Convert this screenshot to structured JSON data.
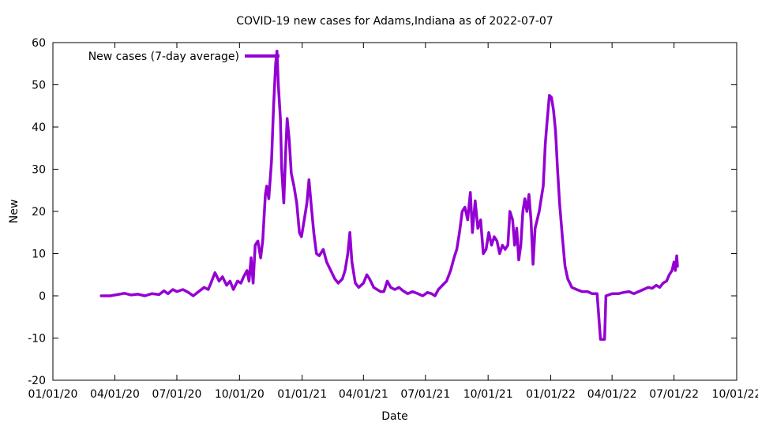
{
  "chart_data": {
    "type": "line",
    "title": "COVID-19 new cases for Adams,Indiana as of 2022-07-07",
    "xlabel": "Date",
    "ylabel": "New",
    "xlim": [
      "2020-01-01",
      "2022-10-01"
    ],
    "ylim": [
      -20,
      60
    ],
    "x_ticks": [
      "01/01/20",
      "04/01/20",
      "07/01/20",
      "10/01/20",
      "01/01/21",
      "04/01/21",
      "07/01/21",
      "10/01/21",
      "01/01/22",
      "04/01/22",
      "07/01/22",
      "10/01/22"
    ],
    "x_tick_dates": [
      "2020-01-01",
      "2020-04-01",
      "2020-07-01",
      "2020-10-01",
      "2021-01-01",
      "2021-04-01",
      "2021-07-01",
      "2021-10-01",
      "2022-01-01",
      "2022-04-01",
      "2022-07-01",
      "2022-10-01"
    ],
    "y_ticks": [
      -20,
      -10,
      0,
      10,
      20,
      30,
      40,
      50,
      60
    ],
    "grid": false,
    "legend_position": "top-left",
    "series": [
      {
        "name": "New cases (7-day average)",
        "color": "#9400d3",
        "points": [
          [
            "2020-03-12",
            0.0
          ],
          [
            "2020-03-25",
            0.0
          ],
          [
            "2020-04-05",
            0.3
          ],
          [
            "2020-04-15",
            0.6
          ],
          [
            "2020-04-25",
            0.2
          ],
          [
            "2020-05-05",
            0.4
          ],
          [
            "2020-05-15",
            0.0
          ],
          [
            "2020-05-25",
            0.5
          ],
          [
            "2020-06-05",
            0.3
          ],
          [
            "2020-06-12",
            1.2
          ],
          [
            "2020-06-18",
            0.5
          ],
          [
            "2020-06-25",
            1.5
          ],
          [
            "2020-07-01",
            1.0
          ],
          [
            "2020-07-10",
            1.5
          ],
          [
            "2020-07-18",
            0.8
          ],
          [
            "2020-07-25",
            0.0
          ],
          [
            "2020-08-02",
            1.0
          ],
          [
            "2020-08-10",
            2.0
          ],
          [
            "2020-08-16",
            1.5
          ],
          [
            "2020-08-20",
            3.0
          ],
          [
            "2020-08-26",
            5.5
          ],
          [
            "2020-09-01",
            3.5
          ],
          [
            "2020-09-06",
            4.5
          ],
          [
            "2020-09-12",
            2.5
          ],
          [
            "2020-09-17",
            3.5
          ],
          [
            "2020-09-22",
            1.5
          ],
          [
            "2020-09-28",
            3.5
          ],
          [
            "2020-10-03",
            3.0
          ],
          [
            "2020-10-07",
            4.5
          ],
          [
            "2020-10-12",
            6.0
          ],
          [
            "2020-10-15",
            3.5
          ],
          [
            "2020-10-18",
            9.0
          ],
          [
            "2020-10-21",
            3.0
          ],
          [
            "2020-10-24",
            12.0
          ],
          [
            "2020-10-28",
            13.0
          ],
          [
            "2020-11-01",
            9.0
          ],
          [
            "2020-11-04",
            13.0
          ],
          [
            "2020-11-08",
            24.0
          ],
          [
            "2020-11-10",
            26.0
          ],
          [
            "2020-11-13",
            23.0
          ],
          [
            "2020-11-17",
            32.0
          ],
          [
            "2020-11-20",
            45.0
          ],
          [
            "2020-11-23",
            55.0
          ],
          [
            "2020-11-25",
            58.0
          ],
          [
            "2020-11-27",
            50.0
          ],
          [
            "2020-11-30",
            42.0
          ],
          [
            "2020-12-02",
            30.0
          ],
          [
            "2020-12-05",
            22.0
          ],
          [
            "2020-12-08",
            35.0
          ],
          [
            "2020-12-10",
            42.0
          ],
          [
            "2020-12-13",
            37.0
          ],
          [
            "2020-12-16",
            29.0
          ],
          [
            "2020-12-20",
            26.0
          ],
          [
            "2020-12-24",
            22.0
          ],
          [
            "2020-12-28",
            15.0
          ],
          [
            "2020-12-31",
            14.0
          ],
          [
            "2021-01-04",
            18.0
          ],
          [
            "2021-01-08",
            22.0
          ],
          [
            "2021-01-11",
            27.5
          ],
          [
            "2021-01-14",
            22.0
          ],
          [
            "2021-01-18",
            15.0
          ],
          [
            "2021-01-22",
            10.0
          ],
          [
            "2021-01-26",
            9.5
          ],
          [
            "2021-02-01",
            11.0
          ],
          [
            "2021-02-06",
            8.0
          ],
          [
            "2021-02-12",
            6.0
          ],
          [
            "2021-02-18",
            4.0
          ],
          [
            "2021-02-23",
            3.0
          ],
          [
            "2021-03-01",
            4.0
          ],
          [
            "2021-03-05",
            6.0
          ],
          [
            "2021-03-09",
            10.0
          ],
          [
            "2021-03-12",
            15.0
          ],
          [
            "2021-03-15",
            8.0
          ],
          [
            "2021-03-20",
            3.0
          ],
          [
            "2021-03-25",
            2.0
          ],
          [
            "2021-04-01",
            3.0
          ],
          [
            "2021-04-06",
            5.0
          ],
          [
            "2021-04-10",
            4.0
          ],
          [
            "2021-04-16",
            2.0
          ],
          [
            "2021-04-21",
            1.5
          ],
          [
            "2021-04-26",
            1.0
          ],
          [
            "2021-05-01",
            1.0
          ],
          [
            "2021-05-06",
            3.5
          ],
          [
            "2021-05-11",
            2.0
          ],
          [
            "2021-05-17",
            1.5
          ],
          [
            "2021-05-23",
            2.0
          ],
          [
            "2021-05-29",
            1.2
          ],
          [
            "2021-06-05",
            0.5
          ],
          [
            "2021-06-12",
            1.0
          ],
          [
            "2021-06-20",
            0.5
          ],
          [
            "2021-06-27",
            0.0
          ],
          [
            "2021-07-04",
            0.8
          ],
          [
            "2021-07-10",
            0.5
          ],
          [
            "2021-07-15",
            0.0
          ],
          [
            "2021-07-20",
            1.5
          ],
          [
            "2021-07-26",
            2.5
          ],
          [
            "2021-08-01",
            3.5
          ],
          [
            "2021-08-07",
            6.0
          ],
          [
            "2021-08-12",
            9.0
          ],
          [
            "2021-08-16",
            11.0
          ],
          [
            "2021-08-20",
            15.0
          ],
          [
            "2021-08-24",
            20.0
          ],
          [
            "2021-08-28",
            21.0
          ],
          [
            "2021-09-01",
            18.0
          ],
          [
            "2021-09-05",
            24.5
          ],
          [
            "2021-09-08",
            15.0
          ],
          [
            "2021-09-12",
            22.5
          ],
          [
            "2021-09-16",
            16.0
          ],
          [
            "2021-09-20",
            18.0
          ],
          [
            "2021-09-24",
            10.0
          ],
          [
            "2021-09-28",
            11.0
          ],
          [
            "2021-10-02",
            15.0
          ],
          [
            "2021-10-06",
            12.0
          ],
          [
            "2021-10-10",
            14.0
          ],
          [
            "2021-10-14",
            13.0
          ],
          [
            "2021-10-18",
            10.0
          ],
          [
            "2021-10-22",
            12.0
          ],
          [
            "2021-10-26",
            11.0
          ],
          [
            "2021-10-30",
            12.0
          ],
          [
            "2021-11-02",
            20.0
          ],
          [
            "2021-11-06",
            18.0
          ],
          [
            "2021-11-09",
            12.0
          ],
          [
            "2021-11-12",
            16.0
          ],
          [
            "2021-11-15",
            8.5
          ],
          [
            "2021-11-18",
            12.0
          ],
          [
            "2021-11-21",
            20.0
          ],
          [
            "2021-11-24",
            23.0
          ],
          [
            "2021-11-27",
            20.0
          ],
          [
            "2021-11-30",
            24.0
          ],
          [
            "2021-12-03",
            18.0
          ],
          [
            "2021-12-06",
            7.5
          ],
          [
            "2021-12-09",
            16.0
          ],
          [
            "2021-12-12",
            18.0
          ],
          [
            "2021-12-15",
            20.0
          ],
          [
            "2021-12-18",
            23.0
          ],
          [
            "2021-12-21",
            26.0
          ],
          [
            "2021-12-24",
            36.0
          ],
          [
            "2021-12-27",
            42.0
          ],
          [
            "2021-12-30",
            47.5
          ],
          [
            "2022-01-02",
            47.0
          ],
          [
            "2022-01-05",
            44.0
          ],
          [
            "2022-01-08",
            39.0
          ],
          [
            "2022-01-11",
            30.0
          ],
          [
            "2022-01-14",
            22.0
          ],
          [
            "2022-01-18",
            14.0
          ],
          [
            "2022-01-22",
            7.0
          ],
          [
            "2022-01-26",
            4.0
          ],
          [
            "2022-02-01",
            2.0
          ],
          [
            "2022-02-08",
            1.5
          ],
          [
            "2022-02-16",
            1.0
          ],
          [
            "2022-02-24",
            1.0
          ],
          [
            "2022-03-03",
            0.5
          ],
          [
            "2022-03-10",
            0.5
          ],
          [
            "2022-03-15",
            -10.3
          ],
          [
            "2022-03-18",
            -10.3
          ],
          [
            "2022-03-21",
            -10.3
          ],
          [
            "2022-03-23",
            0.0
          ],
          [
            "2022-04-01",
            0.5
          ],
          [
            "2022-04-10",
            0.5
          ],
          [
            "2022-04-18",
            0.8
          ],
          [
            "2022-04-26",
            1.0
          ],
          [
            "2022-05-03",
            0.5
          ],
          [
            "2022-05-10",
            1.0
          ],
          [
            "2022-05-17",
            1.5
          ],
          [
            "2022-05-24",
            2.0
          ],
          [
            "2022-05-30",
            1.8
          ],
          [
            "2022-06-05",
            2.5
          ],
          [
            "2022-06-10",
            2.0
          ],
          [
            "2022-06-15",
            3.0
          ],
          [
            "2022-06-20",
            3.5
          ],
          [
            "2022-06-24",
            5.0
          ],
          [
            "2022-06-28",
            6.0
          ],
          [
            "2022-07-01",
            8.0
          ],
          [
            "2022-07-03",
            6.0
          ],
          [
            "2022-07-05",
            9.5
          ],
          [
            "2022-07-06",
            7.0
          ]
        ]
      }
    ]
  }
}
